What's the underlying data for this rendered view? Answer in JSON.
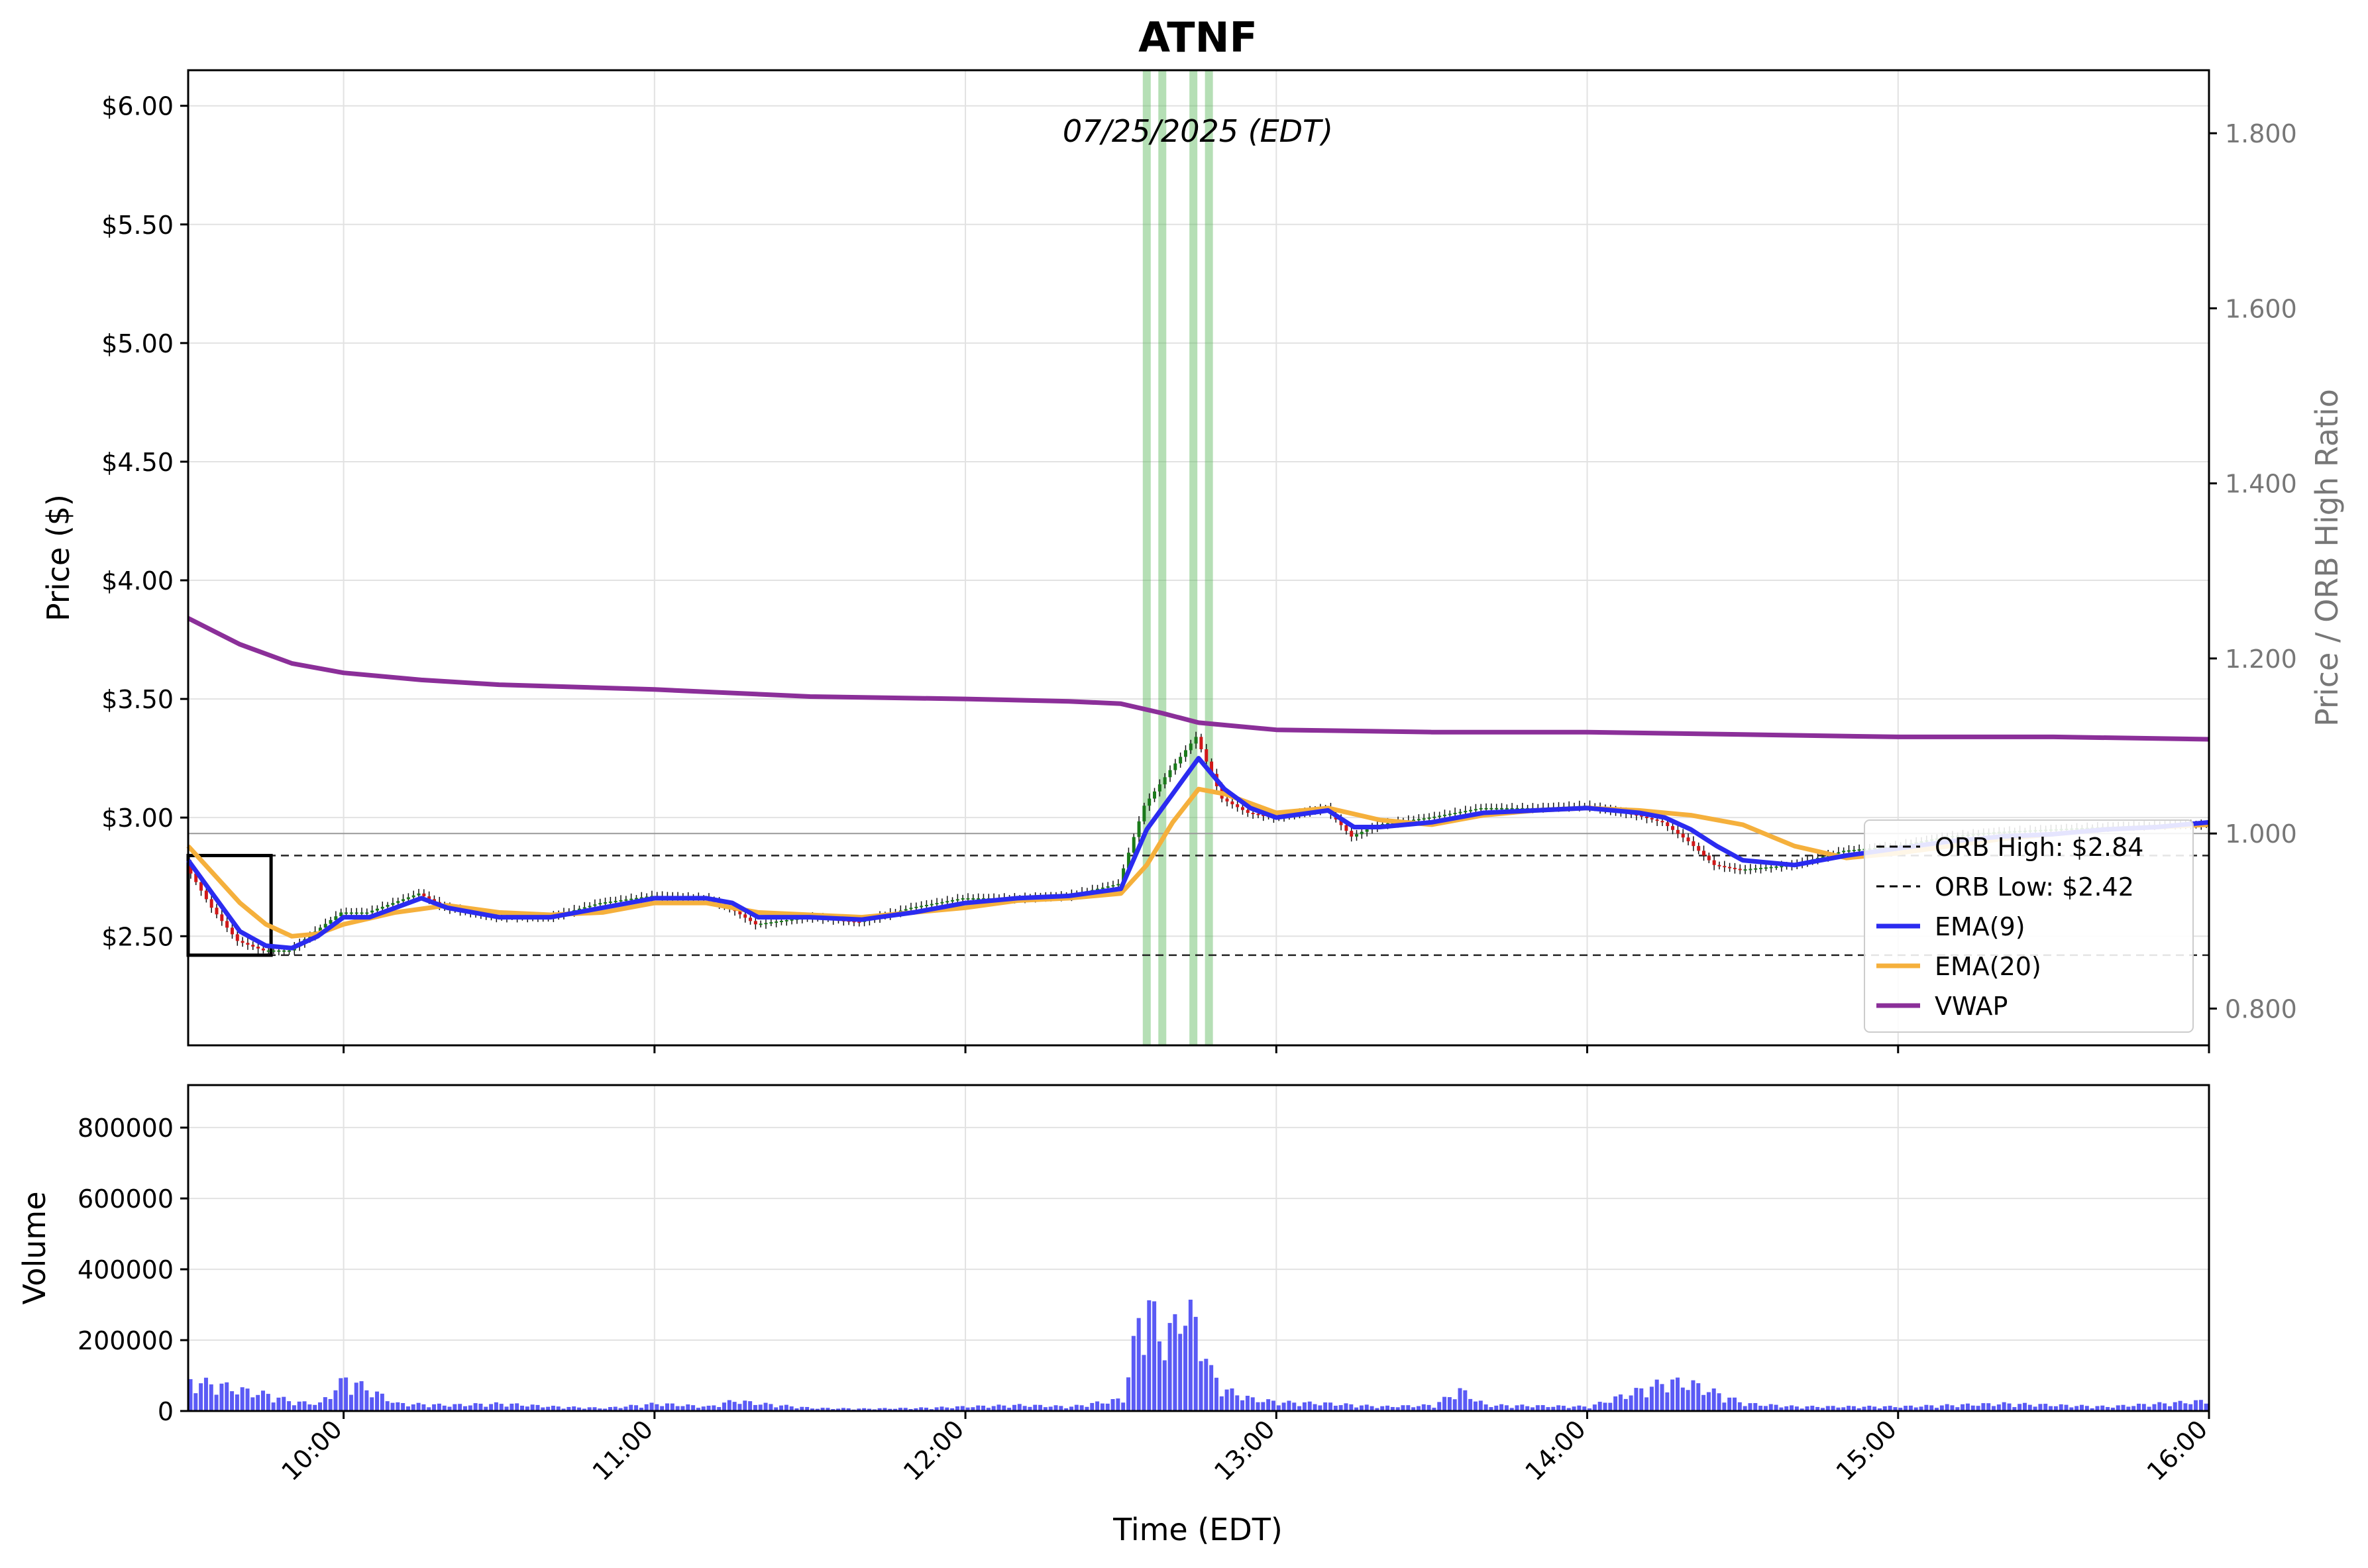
{
  "chart_data": [
    {
      "panel": "price",
      "type": "candlestick",
      "title": "ATNF",
      "date_label": "07/25/2025 (EDT)",
      "ylabel": "Price ($)",
      "ylabel_right": "Price / ORB High Ratio",
      "ylim": [
        2.04,
        6.15
      ],
      "ylim_right": [
        0.758,
        1.872
      ],
      "xlim": [
        "09:30",
        "16:00"
      ],
      "grid": true,
      "legend_position": "lower-right",
      "y_ticks": [
        "$2.50",
        "$3.00",
        "$3.50",
        "$4.00",
        "$4.50",
        "$5.00",
        "$5.50",
        "$6.00"
      ],
      "y_tick_values": [
        2.5,
        3.0,
        3.5,
        4.0,
        4.5,
        5.0,
        5.5,
        6.0
      ],
      "y_ticks_right": [
        "0.800",
        "1.000",
        "1.200",
        "1.400",
        "1.600",
        "1.800"
      ],
      "y_tick_values_right": [
        0.8,
        1.0,
        1.2,
        1.4,
        1.6,
        1.8
      ],
      "orb_high": 2.84,
      "orb_low": 2.42,
      "orb_window": [
        "09:30",
        "09:46"
      ],
      "ratio_reference_line": 1.0,
      "signal_bands": [
        "12:35",
        "12:38",
        "12:44",
        "12:47"
      ],
      "legend": [
        {
          "label": "ORB High: $2.84",
          "style": "dashed",
          "color": "#000000"
        },
        {
          "label": "ORB Low: $2.42",
          "style": "dashed",
          "color": "#000000"
        },
        {
          "label": "EMA(9)",
          "style": "solid",
          "color": "#2b2bf0"
        },
        {
          "label": "EMA(20)",
          "style": "solid",
          "color": "#f5b03c"
        },
        {
          "label": "VWAP",
          "style": "solid",
          "color": "#8b2f99"
        }
      ],
      "vwap": {
        "x": [
          "09:30",
          "09:40",
          "09:50",
          "10:00",
          "10:15",
          "10:30",
          "11:00",
          "11:30",
          "12:00",
          "12:20",
          "12:30",
          "12:38",
          "12:45",
          "13:00",
          "13:30",
          "14:00",
          "14:30",
          "15:00",
          "15:30",
          "16:00"
        ],
        "y": [
          3.84,
          3.73,
          3.65,
          3.61,
          3.58,
          3.56,
          3.54,
          3.51,
          3.5,
          3.49,
          3.48,
          3.44,
          3.4,
          3.37,
          3.36,
          3.36,
          3.35,
          3.34,
          3.34,
          3.33
        ]
      },
      "ema9": {
        "x": [
          "09:30",
          "09:35",
          "09:40",
          "09:45",
          "09:50",
          "09:55",
          "10:00",
          "10:05",
          "10:10",
          "10:15",
          "10:20",
          "10:30",
          "10:40",
          "10:50",
          "11:00",
          "11:10",
          "11:15",
          "11:20",
          "11:30",
          "11:40",
          "11:50",
          "12:00",
          "12:10",
          "12:20",
          "12:30",
          "12:35",
          "12:40",
          "12:45",
          "12:50",
          "12:55",
          "13:00",
          "13:10",
          "13:15",
          "13:20",
          "13:30",
          "13:40",
          "13:50",
          "14:00",
          "14:10",
          "14:15",
          "14:20",
          "14:25",
          "14:30",
          "14:40",
          "14:50",
          "15:00",
          "15:10",
          "15:20",
          "15:30",
          "15:40",
          "15:50",
          "16:00"
        ],
        "y": [
          2.82,
          2.67,
          2.52,
          2.46,
          2.45,
          2.5,
          2.58,
          2.58,
          2.62,
          2.66,
          2.62,
          2.58,
          2.58,
          2.62,
          2.66,
          2.66,
          2.64,
          2.58,
          2.58,
          2.57,
          2.6,
          2.64,
          2.66,
          2.67,
          2.7,
          2.95,
          3.1,
          3.25,
          3.12,
          3.04,
          3.0,
          3.03,
          2.96,
          2.96,
          2.98,
          3.02,
          3.03,
          3.04,
          3.02,
          3.0,
          2.95,
          2.88,
          2.82,
          2.8,
          2.84,
          2.87,
          2.9,
          2.92,
          2.93,
          2.95,
          2.96,
          2.98
        ]
      },
      "ema20": {
        "x": [
          "09:30",
          "09:35",
          "09:40",
          "09:45",
          "09:50",
          "09:55",
          "10:00",
          "10:10",
          "10:20",
          "10:30",
          "10:40",
          "10:50",
          "11:00",
          "11:10",
          "11:20",
          "11:30",
          "11:40",
          "11:50",
          "12:00",
          "12:10",
          "12:20",
          "12:30",
          "12:35",
          "12:40",
          "12:45",
          "12:50",
          "12:55",
          "13:00",
          "13:10",
          "13:20",
          "13:30",
          "13:40",
          "13:50",
          "14:00",
          "14:10",
          "14:20",
          "14:30",
          "14:40",
          "14:50",
          "15:00",
          "15:10",
          "15:20",
          "15:30",
          "15:40",
          "15:50",
          "16:00"
        ],
        "y": [
          2.88,
          2.76,
          2.64,
          2.55,
          2.5,
          2.51,
          2.55,
          2.6,
          2.63,
          2.6,
          2.59,
          2.6,
          2.64,
          2.64,
          2.6,
          2.59,
          2.58,
          2.6,
          2.62,
          2.65,
          2.66,
          2.68,
          2.8,
          2.98,
          3.12,
          3.1,
          3.06,
          3.02,
          3.04,
          2.99,
          2.97,
          3.01,
          3.03,
          3.04,
          3.03,
          3.01,
          2.97,
          2.88,
          2.83,
          2.85,
          2.88,
          2.91,
          2.93,
          2.95,
          2.96,
          2.97
        ]
      },
      "close": {
        "x": [
          "09:30",
          "09:35",
          "09:40",
          "09:45",
          "09:50",
          "09:55",
          "10:00",
          "10:05",
          "10:10",
          "10:15",
          "10:20",
          "10:30",
          "10:40",
          "10:50",
          "11:00",
          "11:10",
          "11:15",
          "11:20",
          "11:30",
          "11:40",
          "11:50",
          "12:00",
          "12:10",
          "12:20",
          "12:30",
          "12:35",
          "12:40",
          "12:45",
          "12:50",
          "12:55",
          "13:00",
          "13:10",
          "13:15",
          "13:20",
          "13:30",
          "13:40",
          "13:50",
          "14:00",
          "14:10",
          "14:15",
          "14:20",
          "14:25",
          "14:30",
          "14:40",
          "14:50",
          "15:00",
          "15:10",
          "15:20",
          "15:30",
          "15:40",
          "15:50",
          "16:00"
        ],
        "y": [
          2.8,
          2.62,
          2.48,
          2.44,
          2.44,
          2.52,
          2.6,
          2.6,
          2.64,
          2.68,
          2.62,
          2.58,
          2.58,
          2.64,
          2.67,
          2.66,
          2.62,
          2.55,
          2.58,
          2.56,
          2.62,
          2.66,
          2.66,
          2.67,
          2.72,
          3.05,
          3.2,
          3.34,
          3.08,
          3.02,
          3.0,
          3.04,
          2.92,
          2.97,
          3.0,
          3.04,
          3.04,
          3.05,
          3.01,
          2.98,
          2.9,
          2.8,
          2.78,
          2.8,
          2.86,
          2.88,
          2.92,
          2.94,
          2.95,
          2.96,
          2.97,
          2.97
        ]
      }
    },
    {
      "panel": "volume",
      "type": "bar",
      "ylabel": "Volume",
      "xlabel": "Time (EDT)",
      "ylim": [
        0,
        920000
      ],
      "y_ticks": [
        "0",
        "200000",
        "400000",
        "600000",
        "800000"
      ],
      "y_tick_values": [
        0,
        200000,
        400000,
        600000,
        800000
      ],
      "x_ticks": [
        "10:00",
        "11:00",
        "12:00",
        "13:00",
        "14:00",
        "15:00",
        "16:00"
      ],
      "bar_color": "#5a5af5",
      "volume": {
        "x": [
          "09:30",
          "09:35",
          "09:40",
          "09:45",
          "09:50",
          "09:55",
          "10:00",
          "10:10",
          "10:20",
          "10:30",
          "10:40",
          "10:50",
          "11:00",
          "11:10",
          "11:15",
          "11:20",
          "11:30",
          "11:40",
          "11:50",
          "12:00",
          "12:10",
          "12:20",
          "12:30",
          "12:33",
          "12:35",
          "12:37",
          "12:40",
          "12:42",
          "12:45",
          "12:47",
          "12:50",
          "12:55",
          "13:00",
          "13:10",
          "13:20",
          "13:30",
          "13:35",
          "13:40",
          "14:00",
          "14:15",
          "14:20",
          "14:30",
          "14:40",
          "15:00",
          "15:20",
          "15:40",
          "16:00"
        ],
        "y": [
          100000,
          90000,
          70000,
          55000,
          30000,
          25000,
          110000,
          25000,
          20000,
          25000,
          15000,
          10000,
          25000,
          15000,
          35000,
          25000,
          10000,
          8000,
          10000,
          15000,
          20000,
          15000,
          40000,
          300000,
          370000,
          250000,
          280000,
          360000,
          250000,
          130000,
          70000,
          40000,
          30000,
          25000,
          15000,
          20000,
          70000,
          20000,
          15000,
          100000,
          90000,
          25000,
          15000,
          15000,
          25000,
          15000,
          35000
        ]
      }
    }
  ]
}
